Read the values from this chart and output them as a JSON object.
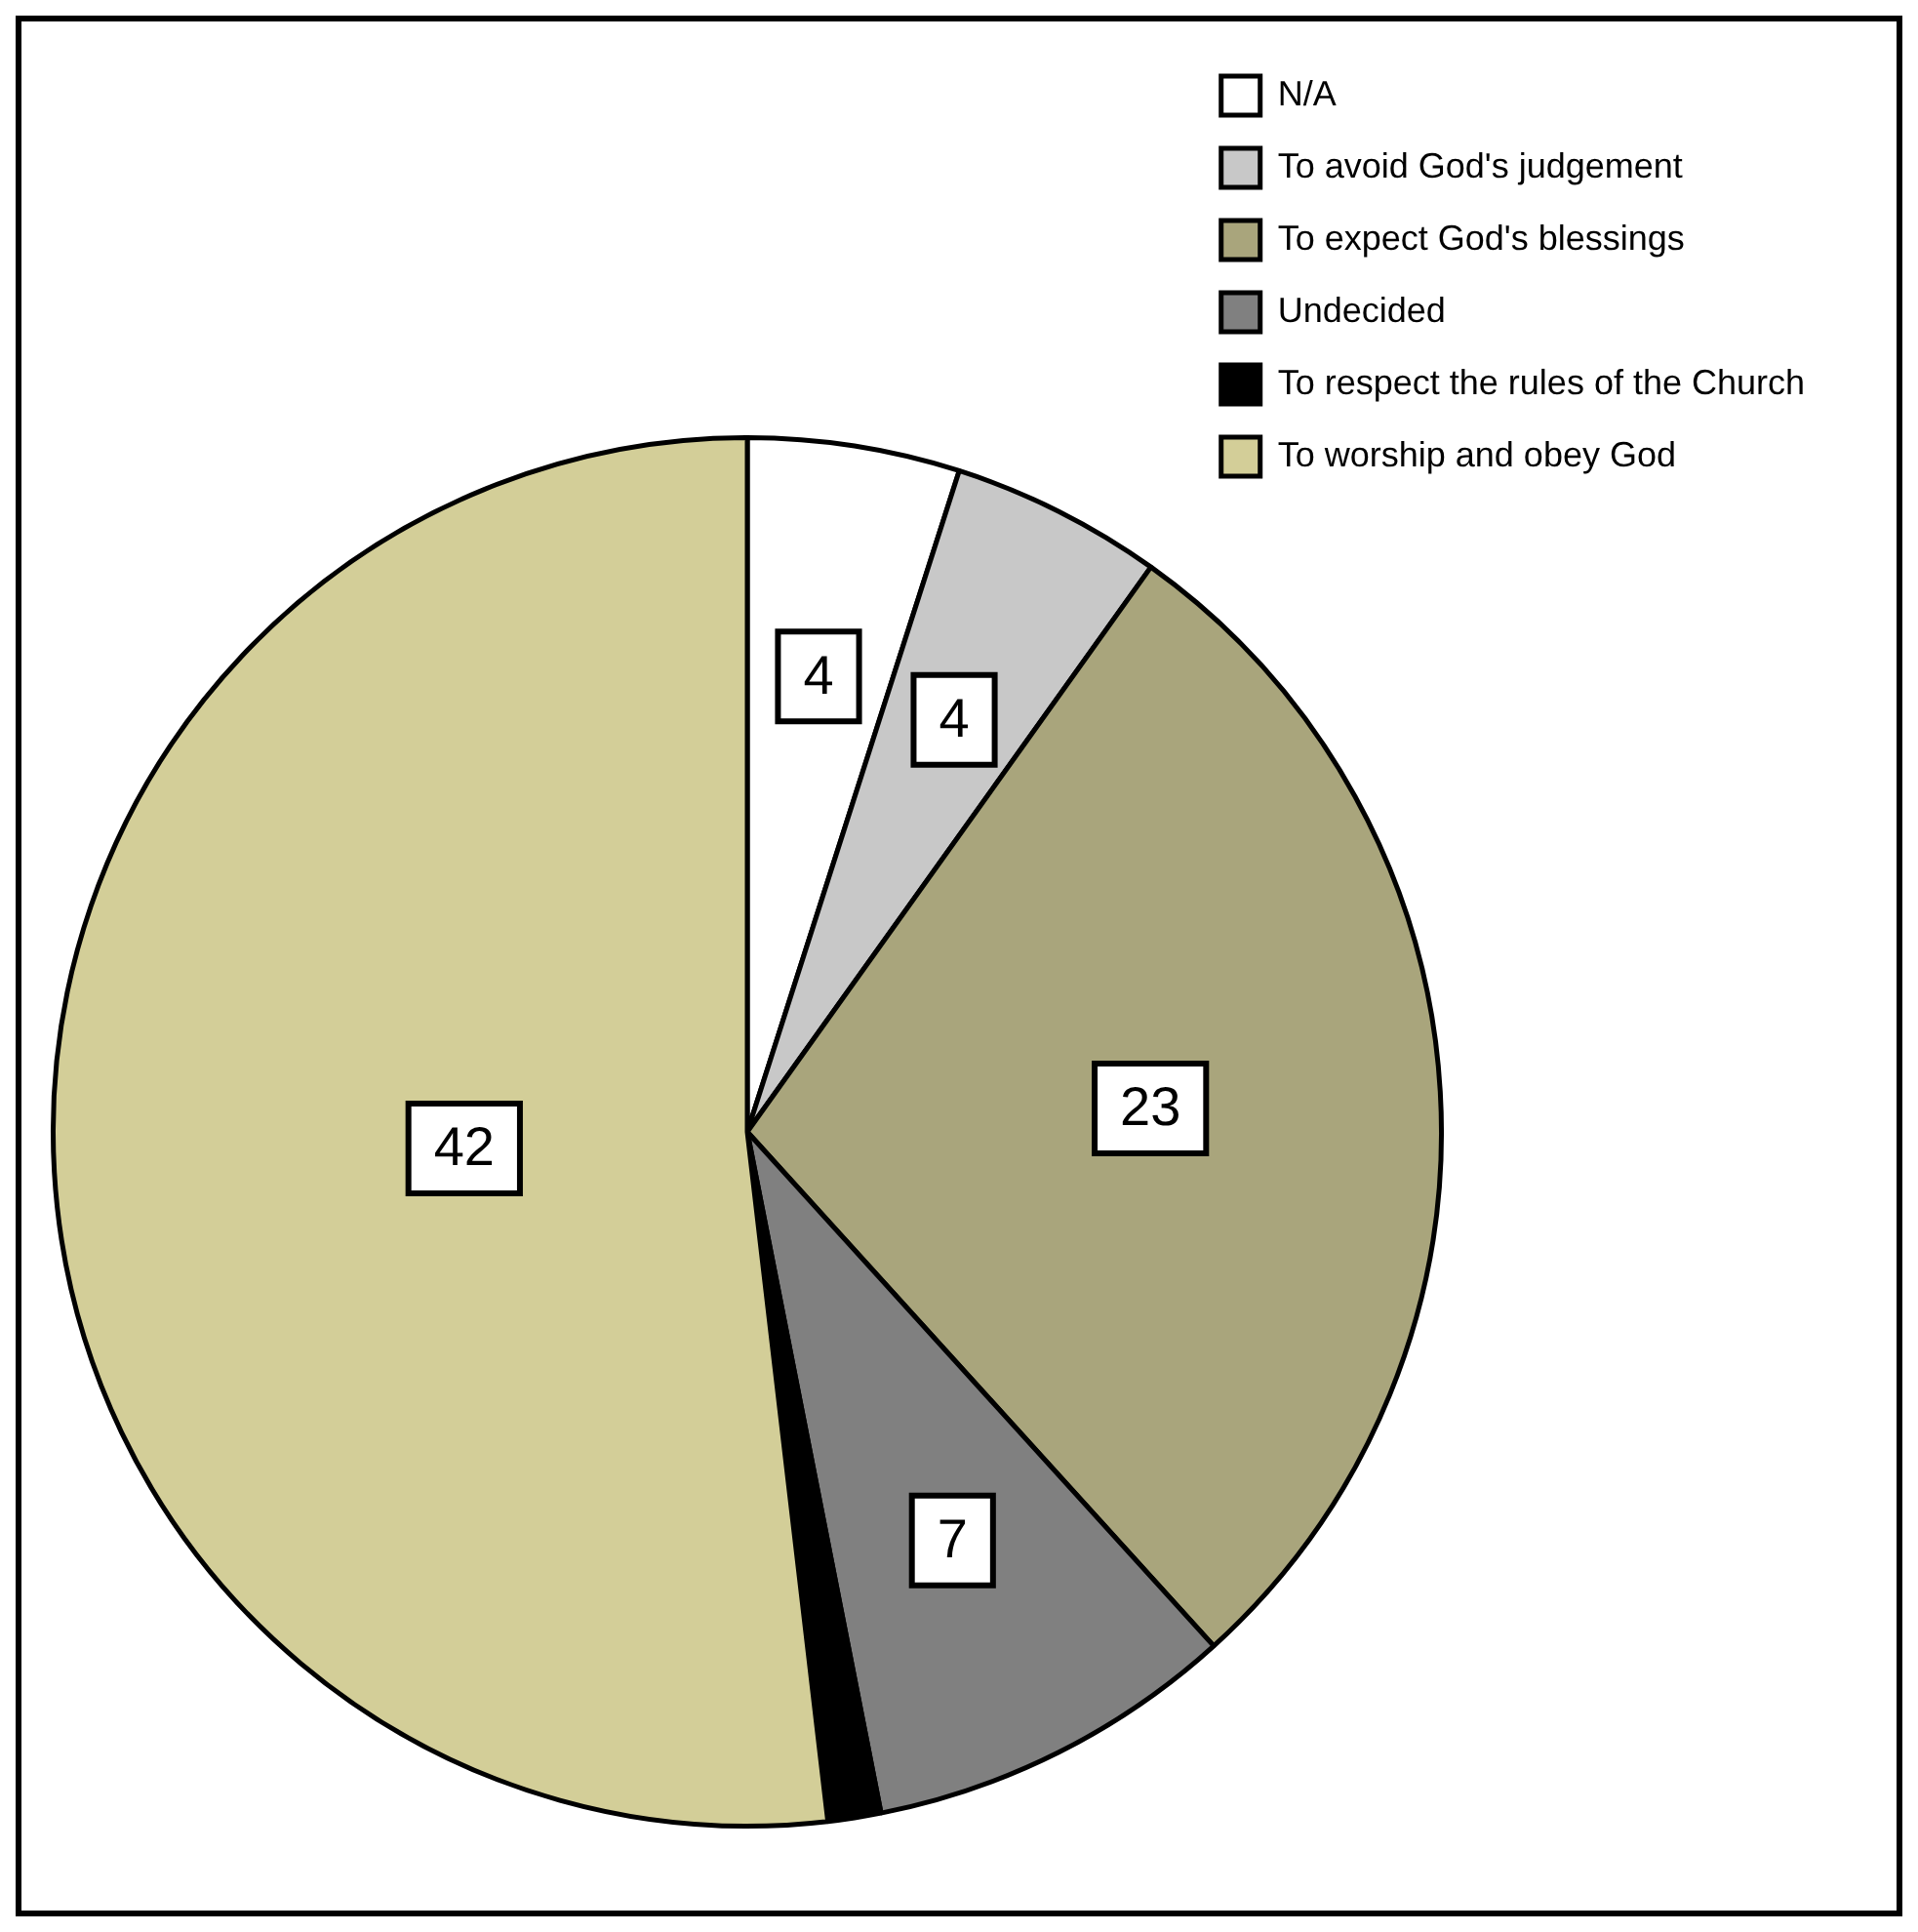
{
  "chart_data": {
    "type": "pie",
    "categories": [
      "N/A",
      "To avoid God's judgement",
      "To expect God's blessings",
      "Undecided",
      "To respect the rules of the Church",
      "To worship and obey God"
    ],
    "values": [
      4,
      4,
      23,
      7,
      1,
      42
    ],
    "colors": [
      "#ffffff",
      "#c8c8c8",
      "#a9a57c",
      "#808080",
      "#000000",
      "#d3ce98"
    ],
    "value_labels": [
      "4",
      "4",
      "23",
      "7",
      null,
      "42"
    ],
    "legend": "top right"
  }
}
